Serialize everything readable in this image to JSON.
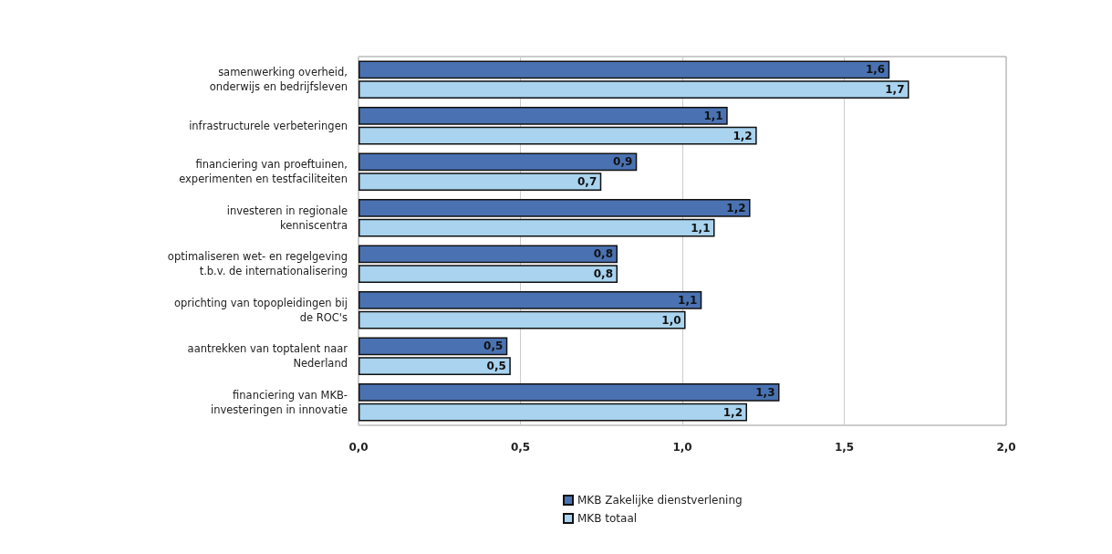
{
  "chart_data": {
    "type": "bar",
    "orientation": "horizontal",
    "categories": [
      "samenwerking overheid,\nonderwijs en bedrijfsleven",
      "infrastructurele verbeteringen",
      "financiering van proeftuinen,\nexperimenten en testfaciliteiten",
      "investeren in regionale\nkenniscentra",
      "optimaliseren wet- en regelgeving\nt.b.v. de internationalisering",
      "oprichting van topopleidingen bij\nde ROC's",
      "aantrekken van toptalent naar\nNederland",
      "financiering van MKB-\ninvesteringen in innovatie"
    ],
    "series": [
      {
        "name": "MKB Zakelijke dienstverlening",
        "color": "#4a72b2",
        "values": [
          1.64,
          1.14,
          0.86,
          1.21,
          0.8,
          1.06,
          0.46,
          1.3
        ],
        "value_labels": [
          "1,6",
          "1,1",
          "0,9",
          "1,2",
          "0,8",
          "1,1",
          "0,5",
          "1,3"
        ]
      },
      {
        "name": "MKB totaal",
        "color": "#a9d3ee",
        "values": [
          1.7,
          1.23,
          0.75,
          1.1,
          0.8,
          1.01,
          0.47,
          1.2
        ],
        "value_labels": [
          "1,7",
          "1,2",
          "0,7",
          "1,1",
          "0,8",
          "1,0",
          "0,5",
          "1,2"
        ]
      }
    ],
    "xlim": [
      0,
      2
    ],
    "xticks": [
      {
        "value": 0,
        "label": "0,0"
      },
      {
        "value": 0.5,
        "label": "0,5"
      },
      {
        "value": 1,
        "label": "1,0"
      },
      {
        "value": 1.5,
        "label": "1,5"
      },
      {
        "value": 2,
        "label": "2,0"
      }
    ],
    "grid": "x",
    "legend": "bottom"
  }
}
